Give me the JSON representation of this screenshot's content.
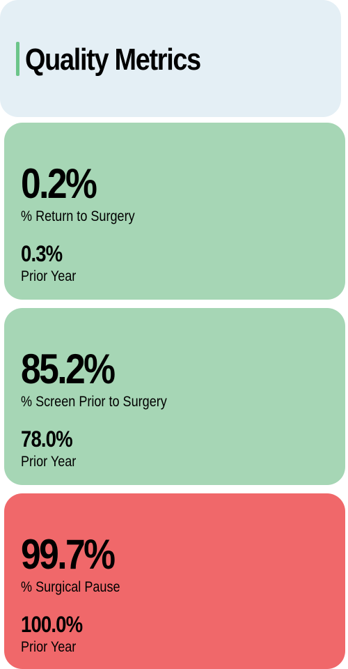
{
  "header": {
    "title": "Quality Metrics",
    "background": "#e4eff5",
    "accent_color": "#6cc58a"
  },
  "metrics": [
    {
      "value": "0.2%",
      "label": "% Return to Surgery",
      "prior_value": "0.3%",
      "prior_label": "Prior Year",
      "color": "#a6d6b5"
    },
    {
      "value": "85.2%",
      "label": "% Screen Prior to Surgery",
      "prior_value": "78.0%",
      "prior_label": "Prior Year",
      "color": "#a6d6b5"
    },
    {
      "value": "99.7%",
      "label": "% Surgical Pause",
      "prior_value": "100.0%",
      "prior_label": "Prior Year",
      "color": "#f0686a"
    }
  ]
}
